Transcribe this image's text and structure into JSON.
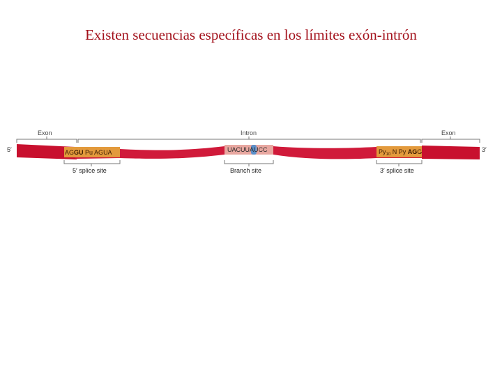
{
  "title": "Existen secuencias específicas en los límites exón-intrón",
  "labels": {
    "exon_left": "Exon",
    "intron": "Intron",
    "exon_right": "Exon",
    "end_5": "5′",
    "end_3": "3′",
    "splice5": "5′ splice site",
    "branch": "Branch site",
    "splice3": "3′ splice site"
  },
  "sequences": {
    "splice5_prefix": "A",
    "splice5_mid": "G",
    "splice5_gu": "GU",
    "splice5_rest": "Pu AGUA",
    "branch_pre": "UACUU",
    "branch_a": "A",
    "branch_post": "UCC",
    "splice3_py": "Py",
    "splice3_sub": "10",
    "splice3_mid": " N Py ",
    "splice3_ag": "AG",
    "splice3_g": "G"
  },
  "colors": {
    "exon": "#c8102e",
    "intron": "#d01a3a",
    "site_box": "#e39a3c",
    "branch_box": "#e8a7a0",
    "branch_a": "#5b8fc9",
    "bracket": "#777777"
  }
}
